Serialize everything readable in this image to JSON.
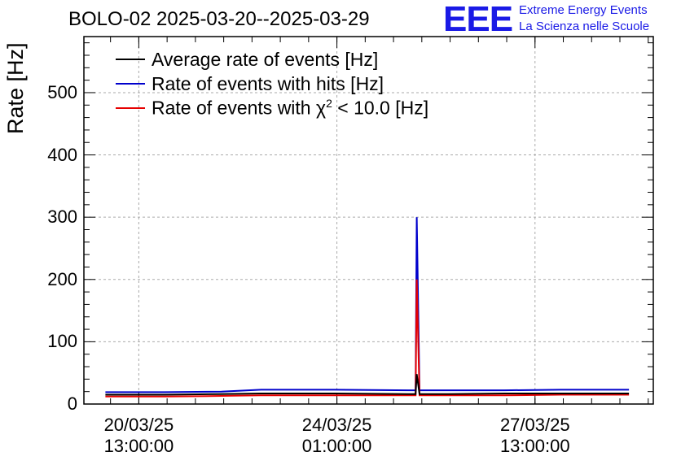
{
  "title": "BOLO-02 2025-03-20--2025-03-29",
  "logo": {
    "text": "EEE",
    "line1": "Extreme Energy Events",
    "line2": "La Scienza nelle Scuole",
    "color": "#1a1ae6"
  },
  "chart_data": {
    "type": "line",
    "title": "BOLO-02 2025-03-20--2025-03-29",
    "xlabel": "",
    "ylabel": "Rate [Hz]",
    "ylim": [
      0,
      590
    ],
    "yticks": [
      0,
      100,
      200,
      300,
      400,
      500
    ],
    "ytick_labels": [
      "0",
      "100",
      "200",
      "300",
      "400",
      "500"
    ],
    "xlim_days": [
      -0.43,
      9.63
    ],
    "x_unit": "days since 2025-03-20 00:00",
    "xticks": [
      {
        "day": 0.54,
        "line1": "20/03/25",
        "line2": "13:00:00"
      },
      {
        "day": 4.04,
        "line1": "24/03/25",
        "line2": "01:00:00"
      },
      {
        "day": 7.54,
        "line1": "27/03/25",
        "line2": "13:00:00"
      }
    ],
    "grid": true,
    "legend_position": "top-left",
    "series": [
      {
        "name": "Average rate of events [Hz]",
        "color": "#000000",
        "x": [
          -0.05,
          1,
          2,
          2.7,
          4,
          5.3,
          5.43,
          5.45,
          5.5,
          6,
          7,
          8,
          9.2
        ],
        "y": [
          15,
          15,
          16,
          17,
          17,
          16,
          16,
          48,
          16,
          16,
          17,
          17,
          17
        ]
      },
      {
        "name": "Rate of events with hits [Hz]",
        "color": "#0000cc",
        "x": [
          -0.05,
          1,
          2,
          2.7,
          4,
          5.3,
          5.43,
          5.45,
          5.5,
          6,
          7,
          8,
          9.2
        ],
        "y": [
          19,
          19,
          20,
          23,
          23,
          22,
          22,
          300,
          22,
          22,
          22,
          23,
          23
        ]
      },
      {
        "name": "Rate of events with χ2 < 10.0 [Hz]",
        "label_main": "Rate of events with χ",
        "label_sup": "2",
        "label_tail": " < 10.0 [Hz]",
        "color": "#e60000",
        "x": [
          -0.05,
          1,
          2,
          2.7,
          4,
          5.3,
          5.43,
          5.45,
          5.5,
          6,
          7,
          8,
          9.2
        ],
        "y": [
          12,
          12,
          13,
          14,
          14,
          14,
          14,
          200,
          14,
          14,
          14,
          15,
          15
        ]
      }
    ]
  }
}
